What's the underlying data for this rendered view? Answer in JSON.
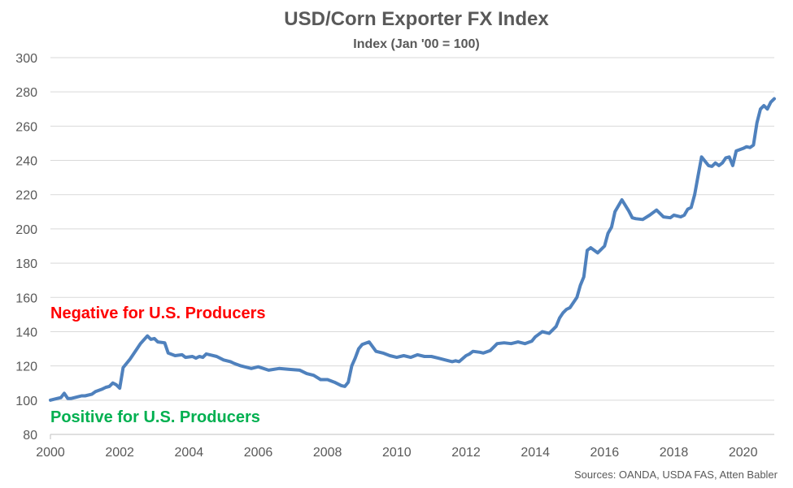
{
  "chart_data": {
    "type": "line",
    "title": "USD/Corn Exporter FX Index",
    "subtitle": "Index (Jan '00 = 100)",
    "xlim": [
      2000,
      2020.9
    ],
    "ylim": [
      80,
      300
    ],
    "x_ticks": [
      2000,
      2002,
      2004,
      2006,
      2008,
      2010,
      2012,
      2014,
      2016,
      2018,
      2020
    ],
    "y_ticks": [
      80,
      100,
      120,
      140,
      160,
      180,
      200,
      220,
      240,
      260,
      280,
      300
    ],
    "grid": true,
    "series": [
      {
        "color": "#4f81bd",
        "x": [
          2000.0,
          2000.2,
          2000.3,
          2000.4,
          2000.5,
          2000.6,
          2000.8,
          2000.9,
          2001.0,
          2001.2,
          2001.3,
          2001.5,
          2001.6,
          2001.7,
          2001.8,
          2001.9,
          2002.0,
          2002.1,
          2002.3,
          2002.5,
          2002.6,
          2002.8,
          2002.9,
          2003.0,
          2003.1,
          2003.3,
          2003.4,
          2003.6,
          2003.8,
          2003.9,
          2004.1,
          2004.2,
          2004.3,
          2004.4,
          2004.5,
          2004.6,
          2004.8,
          2005.0,
          2005.2,
          2005.3,
          2005.5,
          2005.8,
          2006.0,
          2006.3,
          2006.6,
          2006.9,
          2007.2,
          2007.4,
          2007.6,
          2007.8,
          2008.0,
          2008.2,
          2008.4,
          2008.5,
          2008.6,
          2008.7,
          2008.8,
          2008.9,
          2009.0,
          2009.2,
          2009.4,
          2009.6,
          2009.8,
          2010.0,
          2010.2,
          2010.4,
          2010.6,
          2010.8,
          2011.0,
          2011.2,
          2011.4,
          2011.6,
          2011.7,
          2011.8,
          2012.0,
          2012.1,
          2012.2,
          2012.4,
          2012.5,
          2012.7,
          2012.9,
          2013.1,
          2013.3,
          2013.5,
          2013.7,
          2013.9,
          2014.0,
          2014.2,
          2014.4,
          2014.5,
          2014.6,
          2014.7,
          2014.8,
          2014.9,
          2015.0,
          2015.1,
          2015.2,
          2015.3,
          2015.4,
          2015.5,
          2015.6,
          2015.8,
          2016.0,
          2016.1,
          2016.2,
          2016.3,
          2016.5,
          2016.7,
          2016.8,
          2016.9,
          2017.1,
          2017.3,
          2017.5,
          2017.7,
          2017.9,
          2018.0,
          2018.2,
          2018.3,
          2018.4,
          2018.5,
          2018.6,
          2018.7,
          2018.8,
          2019.0,
          2019.1,
          2019.2,
          2019.3,
          2019.4,
          2019.5,
          2019.6,
          2019.7,
          2019.8,
          2020.0,
          2020.1,
          2020.2,
          2020.3,
          2020.4,
          2020.5,
          2020.6,
          2020.7,
          2020.8,
          2020.9
        ],
        "y": [
          100.0,
          101.0,
          101.5,
          104.0,
          101.0,
          101.0,
          102.0,
          102.5,
          102.5,
          103.5,
          105.0,
          106.5,
          107.5,
          108.0,
          110.0,
          109.0,
          107.0,
          119.0,
          124.0,
          130.0,
          133.0,
          137.5,
          135.5,
          136.0,
          134.0,
          133.5,
          127.5,
          126.0,
          126.5,
          125.0,
          125.5,
          124.5,
          125.5,
          125.0,
          127.0,
          126.5,
          125.5,
          123.5,
          122.5,
          121.5,
          120.0,
          118.5,
          119.5,
          117.5,
          118.5,
          118.0,
          117.5,
          115.5,
          114.5,
          112.0,
          112.0,
          110.5,
          108.5,
          108.0,
          110.5,
          120.0,
          124.5,
          130.0,
          132.5,
          134.0,
          128.5,
          127.5,
          126.0,
          125.0,
          126.0,
          125.0,
          126.5,
          125.5,
          125.5,
          124.5,
          123.5,
          122.5,
          123.0,
          122.5,
          126.0,
          127.0,
          128.5,
          128.0,
          127.5,
          129.0,
          133.0,
          133.5,
          133.0,
          134.0,
          133.0,
          134.5,
          137.0,
          140.0,
          139.0,
          141.0,
          143.0,
          148.0,
          151.0,
          153.0,
          154.0,
          157.0,
          160.0,
          167.0,
          172.0,
          187.5,
          189.0,
          186.0,
          190.0,
          197.5,
          201.0,
          210.0,
          217.0,
          210.5,
          206.5,
          206.0,
          205.5,
          208.0,
          211.0,
          207.0,
          206.5,
          208.0,
          207.0,
          208.0,
          211.5,
          212.5,
          220.0,
          231.0,
          242.0,
          237.0,
          236.5,
          238.5,
          237.0,
          238.5,
          241.5,
          242.0,
          237.0,
          245.5,
          247.0,
          248.0,
          247.5,
          249.0,
          262.0,
          270.0,
          272.0,
          270.0,
          274.0,
          276.0
        ]
      }
    ]
  },
  "annotations": {
    "negative": {
      "text": "Negative for U.S. Producers",
      "color": "#ff0000"
    },
    "positive": {
      "text": "Positive for U.S. Producers",
      "color": "#00b050"
    }
  },
  "source": "Sources: OANDA, USDA FAS, Atten Babler"
}
